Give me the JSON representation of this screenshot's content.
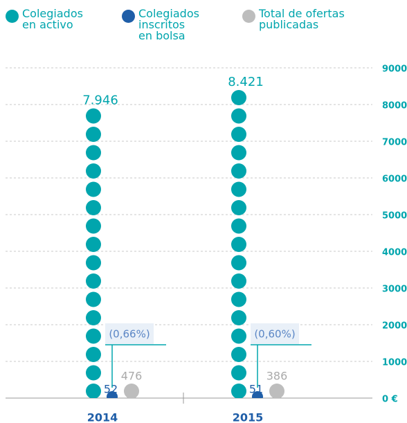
{
  "chart_data": {
    "type": "dot-column",
    "categories": [
      "2014",
      "2015"
    ],
    "series": [
      {
        "name": "Colegiados en activo",
        "color": "#00a5ad",
        "values": [
          7946,
          8421
        ],
        "value_labels": [
          "7.946",
          "8.421"
        ]
      },
      {
        "name": "Colegiados inscritos en bolsa",
        "color": "#1f5ea8",
        "values": [
          52,
          51
        ],
        "value_labels": [
          "52",
          "51"
        ]
      },
      {
        "name": "Total de ofertas publicadas",
        "color": "#bdbdbd",
        "values": [
          476,
          386
        ],
        "value_labels": [
          "476",
          "386"
        ]
      }
    ],
    "annotations": [
      "(0,66%)",
      "(0,60%)"
    ],
    "ylim": [
      0,
      9000
    ],
    "yticks": [
      {
        "value": 0,
        "label": "0 €"
      },
      1000,
      2000,
      3000,
      4000,
      5000,
      6000,
      7000,
      8000,
      9000
    ],
    "grid": true
  }
}
